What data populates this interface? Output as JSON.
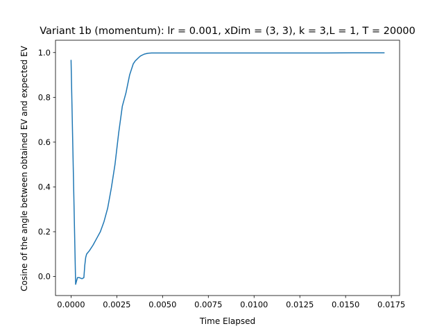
{
  "chart_data": {
    "type": "line",
    "title": "Variant 1b (momentum): lr = 0.001, xDim = (3, 3), k = 3,L = 1, T = 20000",
    "xlabel": "Time Elapsed",
    "ylabel": "Cosine of the angle between obtained EV and expected EV",
    "xlim": [
      -0.00085,
      0.01795
    ],
    "ylim": [
      -0.085,
      1.055
    ],
    "x_ticks": [
      0.0,
      0.0025,
      0.005,
      0.0075,
      0.01,
      0.0125,
      0.015,
      0.0175
    ],
    "x_tick_labels": [
      "0.0000",
      "0.0025",
      "0.0050",
      "0.0075",
      "0.0100",
      "0.0125",
      "0.0150",
      "0.0175"
    ],
    "y_ticks": [
      0.0,
      0.2,
      0.4,
      0.6,
      0.8,
      1.0
    ],
    "y_tick_labels": [
      "0.0",
      "0.2",
      "0.4",
      "0.6",
      "0.8",
      "1.0"
    ],
    "grid": false,
    "series": [
      {
        "color": "#1f77b4",
        "x": [
          0.0,
          0.00025,
          0.00035,
          0.00045,
          0.0006,
          0.0007,
          0.00075,
          0.0008,
          0.00085,
          0.001,
          0.0012,
          0.0014,
          0.0016,
          0.0018,
          0.002,
          0.0022,
          0.0024,
          0.0026,
          0.0028,
          0.003,
          0.0032,
          0.0034,
          0.0035,
          0.0036,
          0.0037,
          0.0038,
          0.004,
          0.0042,
          0.0044,
          0.0048,
          0.006,
          0.008,
          0.01,
          0.012,
          0.014,
          0.016,
          0.0171
        ],
        "y": [
          0.965,
          -0.035,
          -0.005,
          -0.005,
          -0.01,
          -0.005,
          0.05,
          0.085,
          0.1,
          0.115,
          0.14,
          0.17,
          0.2,
          0.245,
          0.305,
          0.395,
          0.5,
          0.64,
          0.76,
          0.82,
          0.9,
          0.95,
          0.962,
          0.97,
          0.978,
          0.985,
          0.993,
          0.997,
          0.998,
          0.998,
          0.998,
          0.998,
          0.998,
          0.998,
          0.998,
          0.999,
          0.999
        ]
      }
    ]
  }
}
